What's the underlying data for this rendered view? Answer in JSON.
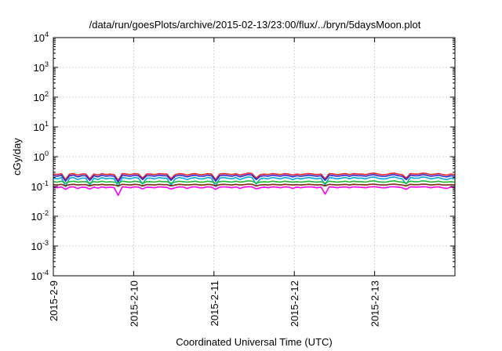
{
  "chart_data": {
    "type": "line",
    "title": "/data/run/goesPlots/archive/2015-02-13/23:00/flux/../bryn/5daysMoon.plot",
    "xlabel": "Coordinated Universal Time (UTC)",
    "ylabel": "cGy/day",
    "yscale": "log",
    "ylim": [
      0.0001,
      10000
    ],
    "y_ticks": [
      {
        "base": "10",
        "exp": "-4",
        "value": 0.0001
      },
      {
        "base": "10",
        "exp": "-3",
        "value": 0.001
      },
      {
        "base": "10",
        "exp": "-2",
        "value": 0.01
      },
      {
        "base": "10",
        "exp": "-1",
        "value": 0.1
      },
      {
        "base": "10",
        "exp": "0",
        "value": 1
      },
      {
        "base": "10",
        "exp": "1",
        "value": 10
      },
      {
        "base": "10",
        "exp": "2",
        "value": 100
      },
      {
        "base": "10",
        "exp": "3",
        "value": 1000
      },
      {
        "base": "10",
        "exp": "4",
        "value": 10000
      }
    ],
    "x_range": [
      "2015-02-09",
      "2015-02-14"
    ],
    "x_ticks": [
      "2015-2-9",
      "2015-2-10",
      "2015-2-11",
      "2015-2-12",
      "2015-2-13"
    ],
    "grid": true,
    "colors": [
      "#e8202a",
      "#2a2cd8",
      "#0aa8d8",
      "#22b83a",
      "#7a2a10",
      "#ff00ff"
    ],
    "series": [
      {
        "color": "#e8202a",
        "values": [
          0.26,
          0.25,
          0.27,
          0.17,
          0.26,
          0.27,
          0.24,
          0.26,
          0.26,
          0.18,
          0.26,
          0.24,
          0.27,
          0.25,
          0.26,
          0.25,
          0.16,
          0.27,
          0.26,
          0.25,
          0.27,
          0.26,
          0.19,
          0.26,
          0.26,
          0.25,
          0.27,
          0.26,
          0.26,
          0.18,
          0.25,
          0.27,
          0.26,
          0.24,
          0.26,
          0.27,
          0.25,
          0.25,
          0.27,
          0.26,
          0.17,
          0.26,
          0.27,
          0.26,
          0.25,
          0.27,
          0.24,
          0.26,
          0.28,
          0.27,
          0.19,
          0.25,
          0.26,
          0.25,
          0.27,
          0.26,
          0.25,
          0.27,
          0.26,
          0.24,
          0.26,
          0.25,
          0.26,
          0.27,
          0.26,
          0.25,
          0.26,
          0.18,
          0.27,
          0.26,
          0.25,
          0.26,
          0.27,
          0.25,
          0.27,
          0.26,
          0.26,
          0.25,
          0.27,
          0.28,
          0.26,
          0.25,
          0.25,
          0.27,
          0.28,
          0.26,
          0.25,
          0.19,
          0.27,
          0.26,
          0.26,
          0.28,
          0.27,
          0.25,
          0.26,
          0.27,
          0.25,
          0.24,
          0.26,
          0.25
        ]
      },
      {
        "color": "#2a2cd8",
        "values": [
          0.23,
          0.22,
          0.24,
          0.15,
          0.23,
          0.24,
          0.21,
          0.23,
          0.23,
          0.16,
          0.23,
          0.21,
          0.24,
          0.22,
          0.23,
          0.22,
          0.14,
          0.24,
          0.23,
          0.22,
          0.24,
          0.23,
          0.17,
          0.23,
          0.23,
          0.22,
          0.24,
          0.23,
          0.23,
          0.16,
          0.22,
          0.24,
          0.23,
          0.21,
          0.23,
          0.24,
          0.22,
          0.22,
          0.24,
          0.23,
          0.15,
          0.23,
          0.24,
          0.23,
          0.22,
          0.24,
          0.21,
          0.23,
          0.25,
          0.24,
          0.17,
          0.22,
          0.23,
          0.22,
          0.24,
          0.23,
          0.22,
          0.24,
          0.23,
          0.21,
          0.23,
          0.22,
          0.23,
          0.24,
          0.23,
          0.22,
          0.23,
          0.16,
          0.24,
          0.23,
          0.22,
          0.23,
          0.24,
          0.22,
          0.24,
          0.23,
          0.23,
          0.22,
          0.24,
          0.25,
          0.23,
          0.22,
          0.22,
          0.24,
          0.25,
          0.23,
          0.22,
          0.17,
          0.24,
          0.23,
          0.23,
          0.25,
          0.24,
          0.22,
          0.23,
          0.24,
          0.22,
          0.21,
          0.23,
          0.22
        ]
      },
      {
        "color": "#0aa8d8",
        "values": [
          0.19,
          0.18,
          0.2,
          0.1,
          0.19,
          0.2,
          0.17,
          0.19,
          0.19,
          0.11,
          0.19,
          0.17,
          0.2,
          0.18,
          0.19,
          0.18,
          0.1,
          0.2,
          0.19,
          0.18,
          0.2,
          0.19,
          0.12,
          0.19,
          0.19,
          0.18,
          0.2,
          0.19,
          0.19,
          0.11,
          0.18,
          0.2,
          0.19,
          0.17,
          0.19,
          0.2,
          0.18,
          0.18,
          0.2,
          0.19,
          0.1,
          0.19,
          0.2,
          0.19,
          0.18,
          0.2,
          0.17,
          0.19,
          0.21,
          0.2,
          0.12,
          0.18,
          0.19,
          0.18,
          0.2,
          0.19,
          0.18,
          0.2,
          0.19,
          0.17,
          0.19,
          0.18,
          0.19,
          0.2,
          0.19,
          0.18,
          0.19,
          0.11,
          0.2,
          0.19,
          0.18,
          0.19,
          0.2,
          0.18,
          0.2,
          0.19,
          0.19,
          0.18,
          0.2,
          0.21,
          0.19,
          0.18,
          0.18,
          0.2,
          0.21,
          0.19,
          0.18,
          0.12,
          0.2,
          0.19,
          0.19,
          0.21,
          0.2,
          0.18,
          0.19,
          0.2,
          0.18,
          0.17,
          0.19,
          0.18
        ]
      },
      {
        "color": "#22b83a",
        "values": [
          0.145,
          0.14,
          0.15,
          0.13,
          0.145,
          0.15,
          0.14,
          0.145,
          0.145,
          0.13,
          0.145,
          0.14,
          0.15,
          0.14,
          0.145,
          0.14,
          0.13,
          0.15,
          0.145,
          0.14,
          0.15,
          0.145,
          0.13,
          0.145,
          0.145,
          0.14,
          0.15,
          0.145,
          0.145,
          0.13,
          0.14,
          0.15,
          0.145,
          0.14,
          0.145,
          0.15,
          0.14,
          0.14,
          0.15,
          0.145,
          0.13,
          0.145,
          0.15,
          0.145,
          0.14,
          0.15,
          0.14,
          0.145,
          0.155,
          0.15,
          0.13,
          0.14,
          0.145,
          0.14,
          0.15,
          0.145,
          0.14,
          0.15,
          0.145,
          0.14,
          0.145,
          0.14,
          0.145,
          0.15,
          0.145,
          0.14,
          0.145,
          0.13,
          0.15,
          0.145,
          0.14,
          0.145,
          0.15,
          0.14,
          0.15,
          0.145,
          0.145,
          0.14,
          0.15,
          0.155,
          0.145,
          0.14,
          0.14,
          0.15,
          0.155,
          0.145,
          0.14,
          0.13,
          0.15,
          0.145,
          0.145,
          0.155,
          0.15,
          0.14,
          0.145,
          0.15,
          0.14,
          0.14,
          0.145,
          0.14
        ]
      },
      {
        "color": "#7a2a10",
        "values": [
          0.115,
          0.112,
          0.118,
          0.105,
          0.115,
          0.118,
          0.112,
          0.115,
          0.115,
          0.105,
          0.115,
          0.112,
          0.118,
          0.112,
          0.115,
          0.112,
          0.105,
          0.118,
          0.115,
          0.112,
          0.118,
          0.115,
          0.105,
          0.115,
          0.115,
          0.112,
          0.118,
          0.115,
          0.115,
          0.105,
          0.112,
          0.118,
          0.115,
          0.112,
          0.115,
          0.118,
          0.112,
          0.112,
          0.118,
          0.115,
          0.105,
          0.115,
          0.118,
          0.115,
          0.112,
          0.118,
          0.112,
          0.115,
          0.12,
          0.118,
          0.105,
          0.112,
          0.115,
          0.112,
          0.118,
          0.115,
          0.112,
          0.118,
          0.115,
          0.112,
          0.115,
          0.112,
          0.115,
          0.118,
          0.115,
          0.112,
          0.115,
          0.105,
          0.118,
          0.115,
          0.112,
          0.115,
          0.118,
          0.112,
          0.118,
          0.115,
          0.115,
          0.112,
          0.118,
          0.12,
          0.115,
          0.112,
          0.112,
          0.118,
          0.12,
          0.115,
          0.112,
          0.105,
          0.118,
          0.115,
          0.115,
          0.12,
          0.118,
          0.112,
          0.115,
          0.118,
          0.112,
          0.112,
          0.115,
          0.112
        ]
      },
      {
        "color": "#ff00ff",
        "values": [
          0.095,
          0.09,
          0.097,
          0.08,
          0.095,
          0.097,
          0.085,
          0.095,
          0.093,
          0.082,
          0.095,
          0.088,
          0.097,
          0.09,
          0.095,
          0.09,
          0.05,
          0.097,
          0.095,
          0.09,
          0.097,
          0.095,
          0.083,
          0.095,
          0.093,
          0.09,
          0.097,
          0.095,
          0.093,
          0.082,
          0.09,
          0.097,
          0.095,
          0.086,
          0.095,
          0.097,
          0.09,
          0.09,
          0.097,
          0.095,
          0.08,
          0.095,
          0.097,
          0.095,
          0.09,
          0.097,
          0.086,
          0.095,
          0.098,
          0.097,
          0.083,
          0.09,
          0.095,
          0.09,
          0.097,
          0.095,
          0.09,
          0.097,
          0.095,
          0.086,
          0.095,
          0.09,
          0.095,
          0.097,
          0.095,
          0.09,
          0.095,
          0.055,
          0.097,
          0.095,
          0.09,
          0.095,
          0.097,
          0.09,
          0.097,
          0.095,
          0.093,
          0.09,
          0.097,
          0.098,
          0.095,
          0.09,
          0.09,
          0.097,
          0.098,
          0.095,
          0.09,
          0.08,
          0.097,
          0.095,
          0.095,
          0.098,
          0.097,
          0.09,
          0.095,
          0.097,
          0.09,
          0.086,
          0.095,
          0.09
        ]
      }
    ]
  }
}
